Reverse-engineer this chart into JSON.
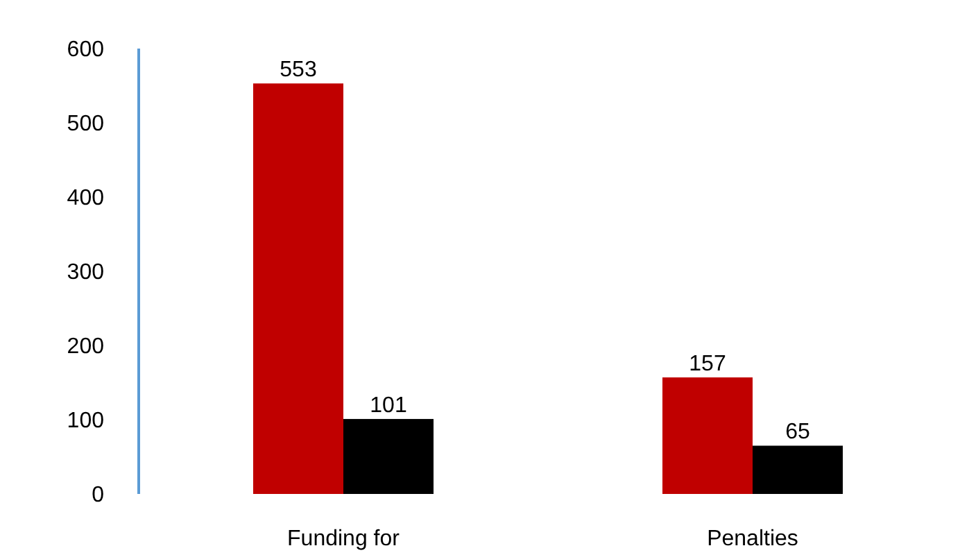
{
  "chart_data": {
    "type": "bar",
    "categories": [
      "Funding for",
      "Penalties"
    ],
    "series": [
      {
        "color": "#c00000",
        "values": [
          553,
          157
        ]
      },
      {
        "color": "#000000",
        "values": [
          101,
          65
        ]
      }
    ],
    "ylim": [
      0,
      600
    ],
    "yticks": [
      0,
      100,
      200,
      300,
      400,
      500,
      600
    ],
    "grid": false,
    "data_labels": true
  }
}
